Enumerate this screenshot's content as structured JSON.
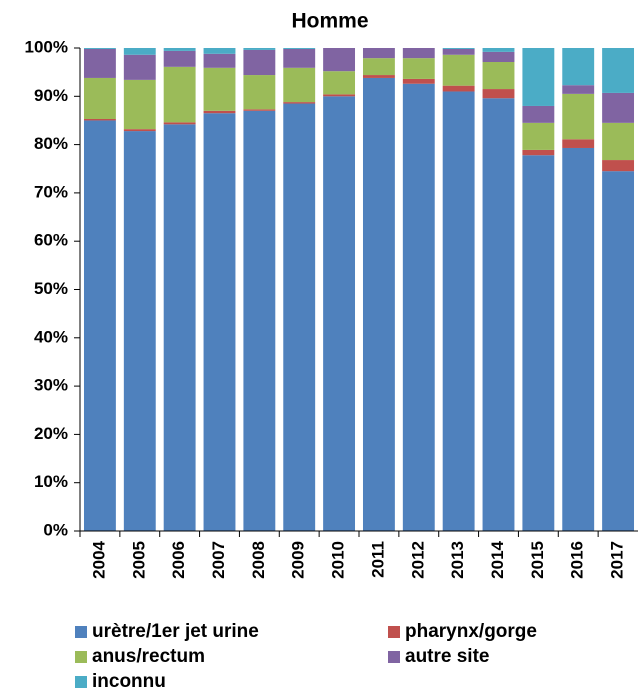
{
  "chart_data": {
    "type": "stacked_bar",
    "title": "Homme",
    "categories": [
      "2004",
      "2005",
      "2006",
      "2007",
      "2008",
      "2009",
      "2010",
      "2011",
      "2012",
      "2013",
      "2014",
      "2015",
      "2016",
      "2017"
    ],
    "series": [
      {
        "name": "urètre/1er jet urine",
        "color": "#4f81bd",
        "values": [
          85,
          82.8,
          84.2,
          86.5,
          87,
          88.5,
          90,
          93.8,
          92.6,
          91,
          89.6,
          77.8,
          79.3,
          74.5
        ]
      },
      {
        "name": "pharynx/gorge",
        "color": "#c0504d",
        "values": [
          0.3,
          0.4,
          0.4,
          0.5,
          0.3,
          0.3,
          0.4,
          0.6,
          1.0,
          1.2,
          1.9,
          1.1,
          1.8,
          2.3
        ]
      },
      {
        "name": "anus/rectum",
        "color": "#9bbb59",
        "values": [
          8.5,
          10.2,
          11.5,
          8.9,
          7.1,
          7.1,
          4.8,
          3.5,
          4.3,
          6.4,
          5.6,
          5.6,
          9.4,
          7.7
        ]
      },
      {
        "name": "autre site",
        "color": "#8064a2",
        "values": [
          6,
          5.2,
          3.3,
          2.9,
          5.2,
          3.9,
          4.8,
          2.1,
          2.1,
          1.2,
          2.1,
          3.5,
          1.8,
          6.2
        ]
      },
      {
        "name": "inconnu",
        "color": "#4bacc6",
        "values": [
          0.2,
          1.4,
          0.6,
          1.2,
          0.4,
          0.2,
          0,
          0,
          0,
          0.2,
          0.8,
          12,
          7.7,
          9.3
        ]
      }
    ],
    "ylim": [
      0,
      100
    ],
    "yticks": [
      {
        "value": 0,
        "label": "0%"
      },
      {
        "value": 10,
        "label": "10%"
      },
      {
        "value": 20,
        "label": "20%"
      },
      {
        "value": 30,
        "label": "30%"
      },
      {
        "value": 40,
        "label": "40%"
      },
      {
        "value": 50,
        "label": "50%"
      },
      {
        "value": 60,
        "label": "60%"
      },
      {
        "value": 70,
        "label": "70%"
      },
      {
        "value": 80,
        "label": "80%"
      },
      {
        "value": 90,
        "label": "90%"
      },
      {
        "value": 100,
        "label": "100%"
      }
    ],
    "grid": false
  }
}
